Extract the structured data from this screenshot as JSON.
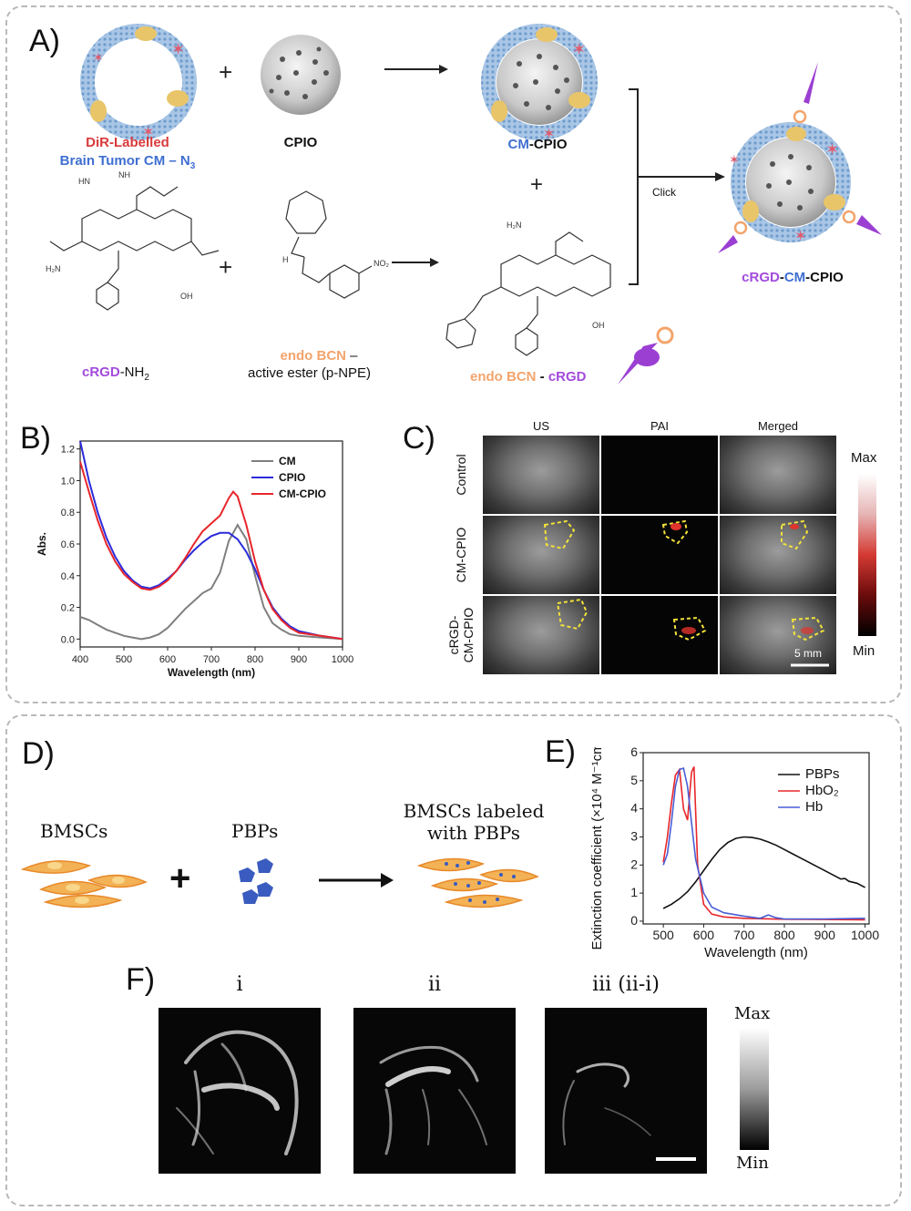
{
  "panels": {
    "a": "A)",
    "b": "B)",
    "c": "C)",
    "d": "D)",
    "e": "E)",
    "f": "F)"
  },
  "panel_a": {
    "plus": "+",
    "dir_labelled": "DiR-Labelled",
    "brain_tumor": "Brain  Tumor CM – N",
    "n3_sub": "3",
    "cpio": "CPIO",
    "cm_cpio_cm": "CM",
    "cm_cpio_rest": "-CPIO",
    "click": "Click",
    "final_crgd": "cRGD",
    "final_cm": "CM",
    "final_cpio": "CPIO",
    "crgd_nh2_a": "cRGD",
    "crgd_nh2_b": "-NH",
    "crgd_nh2_sub": "2",
    "endo_bcn": "endo BCN",
    "endo_dash": " –",
    "active_ester": "active ester (p-NPE)",
    "endo_bcn_crgd_a": "endo BCN",
    "endo_bcn_crgd_b": " - ",
    "endo_bcn_crgd_c": "cRGD",
    "no2": "NO",
    "no2_sub": "2",
    "h2n": "H₂N",
    "oh": "OH",
    "nh": "NH",
    "hn": "HN",
    "h": "H",
    "o": "O"
  },
  "panel_c": {
    "columns": [
      "US",
      "PAI",
      "Merged"
    ],
    "rows": [
      "Control",
      "CM-CPIO",
      "cRGD-\nCM-CPIO"
    ],
    "row_line1": [
      "Control",
      "CM-CPIO",
      "cRGD-"
    ],
    "row_line2": [
      "",
      "",
      "CM-CPIO"
    ],
    "colorbar_max": "Max",
    "colorbar_min": "Min",
    "scale_bar": "5 mm"
  },
  "panel_d": {
    "bmscs": "BMSCs",
    "pbps": "PBPs",
    "plus": "+",
    "labeled_line1": "BMSCs labeled",
    "labeled_line2": "with PBPs"
  },
  "panel_f": {
    "labels": [
      "i",
      "ii",
      "iii (ii-i)"
    ],
    "colorbar_max": "Max",
    "colorbar_min": "Min"
  },
  "colors": {
    "cm": "#7f7f7f",
    "cpio": "#2b2bdb",
    "cm_cpio": "#e8262b",
    "pbps": "#111111",
    "hbo2": "#e8262b",
    "hb": "#4a5fd6",
    "crgd_purple": "#a24bdc",
    "bcn_orange": "#f3a46c"
  },
  "chart_data": [
    {
      "id": "B",
      "type": "line",
      "title": "",
      "xlabel": "Wavelength (nm)",
      "ylabel": "Abs.",
      "xlim": [
        400,
        1000
      ],
      "ylim": [
        -0.05,
        1.25
      ],
      "xticks": [
        400,
        500,
        600,
        700,
        800,
        900,
        1000
      ],
      "yticks": [
        0.0,
        0.2,
        0.4,
        0.6,
        0.8,
        1.0,
        1.2
      ],
      "legend": "top-right",
      "series": [
        {
          "name": "CM",
          "color": "#7f7f7f",
          "x": [
            400,
            420,
            440,
            460,
            480,
            500,
            520,
            540,
            560,
            580,
            600,
            620,
            640,
            660,
            680,
            700,
            720,
            740,
            760,
            780,
            800,
            820,
            840,
            860,
            880,
            900,
            950,
            1000
          ],
          "y": [
            0.14,
            0.12,
            0.09,
            0.06,
            0.04,
            0.02,
            0.01,
            0.0,
            0.01,
            0.03,
            0.07,
            0.13,
            0.19,
            0.24,
            0.29,
            0.32,
            0.42,
            0.62,
            0.72,
            0.63,
            0.4,
            0.2,
            0.1,
            0.06,
            0.03,
            0.02,
            0.01,
            0.0
          ]
        },
        {
          "name": "CPIO",
          "color": "#2b2bdb",
          "x": [
            400,
            420,
            440,
            460,
            480,
            500,
            520,
            540,
            560,
            580,
            600,
            620,
            640,
            660,
            680,
            700,
            720,
            740,
            760,
            780,
            800,
            820,
            840,
            860,
            880,
            900,
            950,
            1000
          ],
          "y": [
            1.25,
            1.0,
            0.8,
            0.64,
            0.52,
            0.43,
            0.37,
            0.33,
            0.32,
            0.34,
            0.38,
            0.43,
            0.5,
            0.56,
            0.61,
            0.65,
            0.67,
            0.67,
            0.63,
            0.55,
            0.44,
            0.31,
            0.2,
            0.13,
            0.08,
            0.05,
            0.02,
            0.0
          ]
        },
        {
          "name": "CM-CPIO",
          "color": "#e8262b",
          "x": [
            400,
            420,
            440,
            460,
            480,
            500,
            520,
            540,
            560,
            580,
            600,
            620,
            640,
            660,
            680,
            700,
            720,
            740,
            750,
            760,
            780,
            800,
            820,
            840,
            860,
            880,
            900,
            950,
            1000
          ],
          "y": [
            1.12,
            0.93,
            0.75,
            0.6,
            0.49,
            0.41,
            0.36,
            0.32,
            0.31,
            0.33,
            0.37,
            0.43,
            0.51,
            0.6,
            0.68,
            0.73,
            0.78,
            0.89,
            0.93,
            0.9,
            0.72,
            0.49,
            0.31,
            0.19,
            0.12,
            0.07,
            0.04,
            0.02,
            0.0
          ]
        }
      ]
    },
    {
      "id": "E",
      "type": "line",
      "title": "",
      "xlabel": "Wavelength (nm)",
      "ylabel": "Extinction coefficient (×10⁴ M⁻¹cm⁻¹)",
      "xlim": [
        450,
        1010
      ],
      "ylim": [
        -0.1,
        6
      ],
      "xticks": [
        500,
        600,
        700,
        800,
        900,
        1000
      ],
      "yticks": [
        0,
        1,
        2,
        3,
        4,
        5,
        6
      ],
      "legend": "top-right",
      "series": [
        {
          "name": "PBPs",
          "color": "#111111",
          "x": [
            500,
            520,
            540,
            560,
            580,
            600,
            620,
            640,
            660,
            680,
            700,
            720,
            740,
            760,
            780,
            800,
            820,
            840,
            860,
            880,
            900,
            920,
            940,
            950,
            960,
            980,
            1000
          ],
          "y": [
            0.45,
            0.6,
            0.8,
            1.05,
            1.4,
            1.8,
            2.2,
            2.55,
            2.8,
            2.95,
            3.0,
            2.98,
            2.92,
            2.82,
            2.7,
            2.55,
            2.4,
            2.25,
            2.1,
            1.95,
            1.8,
            1.65,
            1.5,
            1.52,
            1.42,
            1.35,
            1.2
          ]
        },
        {
          "name": "HbO₂",
          "color": "#e8262b",
          "x": [
            500,
            510,
            520,
            530,
            540,
            550,
            560,
            570,
            576,
            585,
            600,
            620,
            650,
            700,
            800,
            900,
            1000
          ],
          "y": [
            2.1,
            3.0,
            4.2,
            5.2,
            5.4,
            4.0,
            3.6,
            5.3,
            5.5,
            2.0,
            0.6,
            0.25,
            0.15,
            0.1,
            0.07,
            0.06,
            0.05
          ]
        },
        {
          "name": "Hb",
          "color": "#4a5fd6",
          "x": [
            500,
            510,
            520,
            530,
            540,
            550,
            560,
            570,
            580,
            600,
            620,
            650,
            700,
            740,
            760,
            780,
            800,
            900,
            1000
          ],
          "y": [
            2.0,
            2.4,
            3.5,
            4.8,
            5.4,
            5.45,
            4.8,
            3.5,
            2.2,
            1.0,
            0.5,
            0.3,
            0.18,
            0.1,
            0.22,
            0.12,
            0.08,
            0.08,
            0.1
          ]
        }
      ]
    }
  ]
}
